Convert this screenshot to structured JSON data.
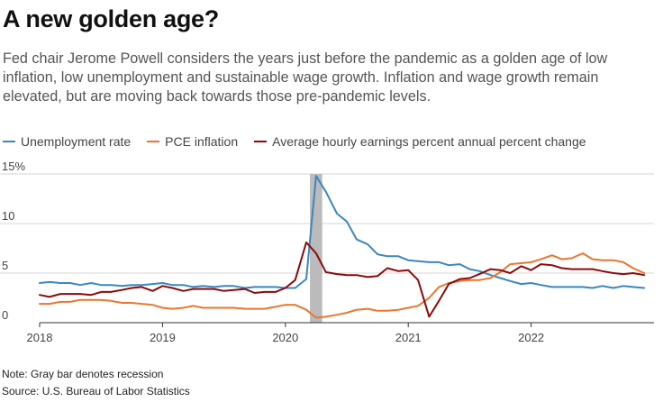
{
  "header": {
    "title": "A new golden age?",
    "subtitle": "Fed chair Jerome Powell considers the years just before the pandemic as a golden age of low inflation, low unemployment and sustainable wage growth. Inflation and wage growth remain elevated, but are moving back towards those pre-pandemic levels."
  },
  "legend": [
    {
      "label": "Unemployment rate",
      "color": "#3a87c0"
    },
    {
      "label": "PCE inflation",
      "color": "#e8772e"
    },
    {
      "label": "Average hourly earnings percent annual percent change",
      "color": "#8b0a0a"
    }
  ],
  "footer": {
    "note": "Note: Gray bar denotes recession",
    "source": "Source: U.S. Bureau of Labor Statistics"
  },
  "chart_data": {
    "type": "line",
    "title": "A new golden age?",
    "xlabel": "",
    "ylabel": "",
    "x_ticks": [
      "2018",
      "2019",
      "2020",
      "2021",
      "2022"
    ],
    "y_ticks": [
      "0",
      "5",
      "10",
      "15%"
    ],
    "ylim": [
      0,
      15
    ],
    "xlim": [
      2018.0,
      2023.0
    ],
    "grid": true,
    "recession": {
      "start": 2020.2,
      "end": 2020.3,
      "color": "#bbbbbb"
    },
    "series": [
      {
        "name": "Unemployment rate",
        "color": "#3a87c0",
        "x": [
          2018.0,
          2018.08,
          2018.17,
          2018.25,
          2018.33,
          2018.42,
          2018.5,
          2018.58,
          2018.67,
          2018.75,
          2018.83,
          2018.92,
          2019.0,
          2019.08,
          2019.17,
          2019.25,
          2019.33,
          2019.42,
          2019.5,
          2019.58,
          2019.67,
          2019.75,
          2019.83,
          2019.92,
          2020.0,
          2020.08,
          2020.17,
          2020.25,
          2020.33,
          2020.42,
          2020.5,
          2020.58,
          2020.67,
          2020.75,
          2020.83,
          2020.92,
          2021.0,
          2021.08,
          2021.17,
          2021.25,
          2021.33,
          2021.42,
          2021.5,
          2021.58,
          2021.67,
          2021.75,
          2021.83,
          2021.92,
          2022.0,
          2022.08,
          2022.17,
          2022.25,
          2022.33,
          2022.42,
          2022.5,
          2022.58,
          2022.67,
          2022.75,
          2022.83,
          2022.92
        ],
        "values": [
          4.0,
          4.1,
          4.0,
          4.0,
          3.8,
          4.0,
          3.8,
          3.8,
          3.7,
          3.8,
          3.8,
          3.9,
          4.0,
          3.8,
          3.8,
          3.6,
          3.7,
          3.6,
          3.7,
          3.7,
          3.5,
          3.6,
          3.6,
          3.6,
          3.5,
          3.5,
          4.4,
          14.8,
          13.2,
          11.0,
          10.2,
          8.4,
          7.9,
          6.9,
          6.7,
          6.7,
          6.3,
          6.2,
          6.1,
          6.1,
          5.8,
          5.9,
          5.4,
          5.2,
          4.8,
          4.5,
          4.2,
          3.9,
          4.0,
          3.8,
          3.6,
          3.6,
          3.6,
          3.6,
          3.5,
          3.7,
          3.5,
          3.7,
          3.6,
          3.5
        ]
      },
      {
        "name": "PCE inflation",
        "color": "#e8772e",
        "x": [
          2018.0,
          2018.08,
          2018.17,
          2018.25,
          2018.33,
          2018.42,
          2018.5,
          2018.58,
          2018.67,
          2018.75,
          2018.83,
          2018.92,
          2019.0,
          2019.08,
          2019.17,
          2019.25,
          2019.33,
          2019.42,
          2019.5,
          2019.58,
          2019.67,
          2019.75,
          2019.83,
          2019.92,
          2020.0,
          2020.08,
          2020.17,
          2020.25,
          2020.33,
          2020.42,
          2020.5,
          2020.58,
          2020.67,
          2020.75,
          2020.83,
          2020.92,
          2021.0,
          2021.08,
          2021.17,
          2021.25,
          2021.33,
          2021.42,
          2021.5,
          2021.58,
          2021.67,
          2021.75,
          2021.83,
          2021.92,
          2022.0,
          2022.08,
          2022.17,
          2022.25,
          2022.33,
          2022.42,
          2022.5,
          2022.58,
          2022.67,
          2022.75,
          2022.83,
          2022.92
        ],
        "values": [
          1.9,
          1.9,
          2.1,
          2.1,
          2.3,
          2.3,
          2.3,
          2.2,
          2.0,
          2.0,
          1.9,
          1.8,
          1.5,
          1.4,
          1.5,
          1.7,
          1.5,
          1.5,
          1.5,
          1.5,
          1.4,
          1.4,
          1.4,
          1.6,
          1.8,
          1.8,
          1.3,
          0.5,
          0.6,
          0.8,
          1.0,
          1.3,
          1.4,
          1.2,
          1.2,
          1.3,
          1.5,
          1.7,
          2.5,
          3.6,
          4.0,
          4.2,
          4.3,
          4.3,
          4.5,
          5.1,
          5.9,
          6.0,
          6.1,
          6.4,
          6.8,
          6.4,
          6.5,
          7.0,
          6.4,
          6.3,
          6.3,
          6.1,
          5.5,
          5.0
        ]
      },
      {
        "name": "Average hourly earnings percent annual percent change",
        "color": "#8b0a0a",
        "x": [
          2018.0,
          2018.08,
          2018.17,
          2018.25,
          2018.33,
          2018.42,
          2018.5,
          2018.58,
          2018.67,
          2018.75,
          2018.83,
          2018.92,
          2019.0,
          2019.08,
          2019.17,
          2019.25,
          2019.33,
          2019.42,
          2019.5,
          2019.58,
          2019.67,
          2019.75,
          2019.83,
          2019.92,
          2020.0,
          2020.08,
          2020.17,
          2020.25,
          2020.33,
          2020.42,
          2020.5,
          2020.58,
          2020.67,
          2020.75,
          2020.83,
          2020.92,
          2021.0,
          2021.08,
          2021.17,
          2021.25,
          2021.33,
          2021.42,
          2021.5,
          2021.58,
          2021.67,
          2021.75,
          2021.83,
          2021.92,
          2022.0,
          2022.08,
          2022.17,
          2022.25,
          2022.33,
          2022.42,
          2022.5,
          2022.58,
          2022.67,
          2022.75,
          2022.83,
          2022.92
        ],
        "values": [
          2.8,
          2.6,
          2.9,
          2.9,
          2.9,
          2.8,
          3.1,
          3.1,
          3.3,
          3.5,
          3.6,
          3.2,
          3.7,
          3.5,
          3.2,
          3.4,
          3.4,
          3.4,
          3.2,
          3.3,
          3.4,
          3.0,
          3.1,
          3.1,
          3.5,
          4.3,
          8.1,
          7.0,
          5.1,
          4.9,
          4.8,
          4.8,
          4.6,
          4.7,
          5.5,
          5.2,
          5.3,
          4.3,
          0.6,
          2.2,
          3.9,
          4.4,
          4.5,
          4.9,
          5.4,
          5.3,
          5.0,
          5.7,
          5.3,
          5.9,
          5.8,
          5.5,
          5.4,
          5.4,
          5.4,
          5.2,
          5.0,
          4.9,
          5.0,
          4.8
        ]
      }
    ]
  }
}
